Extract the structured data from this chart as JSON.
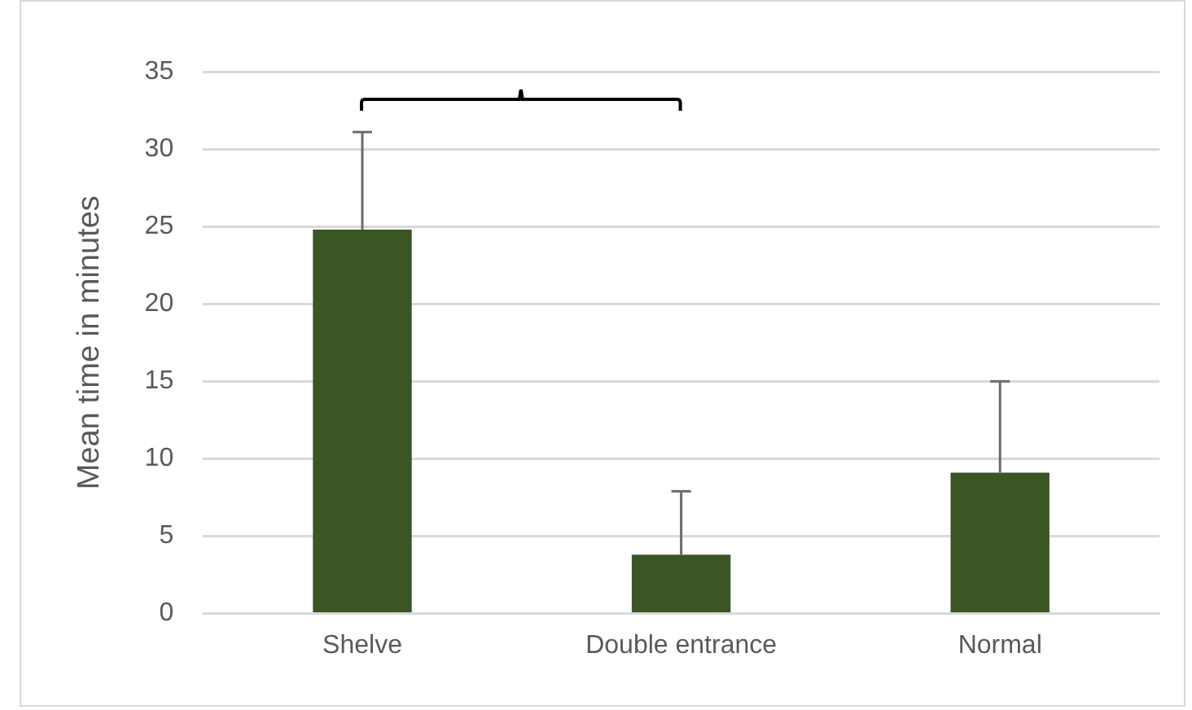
{
  "chart_data": {
    "type": "bar",
    "ylabel": "Mean time in minutes",
    "categories": [
      "Shelve",
      "Double entrance",
      "Normal"
    ],
    "values": [
      24.8,
      3.8,
      9.1
    ],
    "errors": [
      [
        24.8,
        31.1
      ],
      [
        3.8,
        7.9
      ],
      [
        9.1,
        15
      ]
    ],
    "color": "#3b5524",
    "ylim": [
      0,
      35
    ],
    "yticks": [
      0,
      5,
      10,
      15,
      20,
      25,
      30,
      35
    ],
    "grid": "y",
    "legend": false
  }
}
